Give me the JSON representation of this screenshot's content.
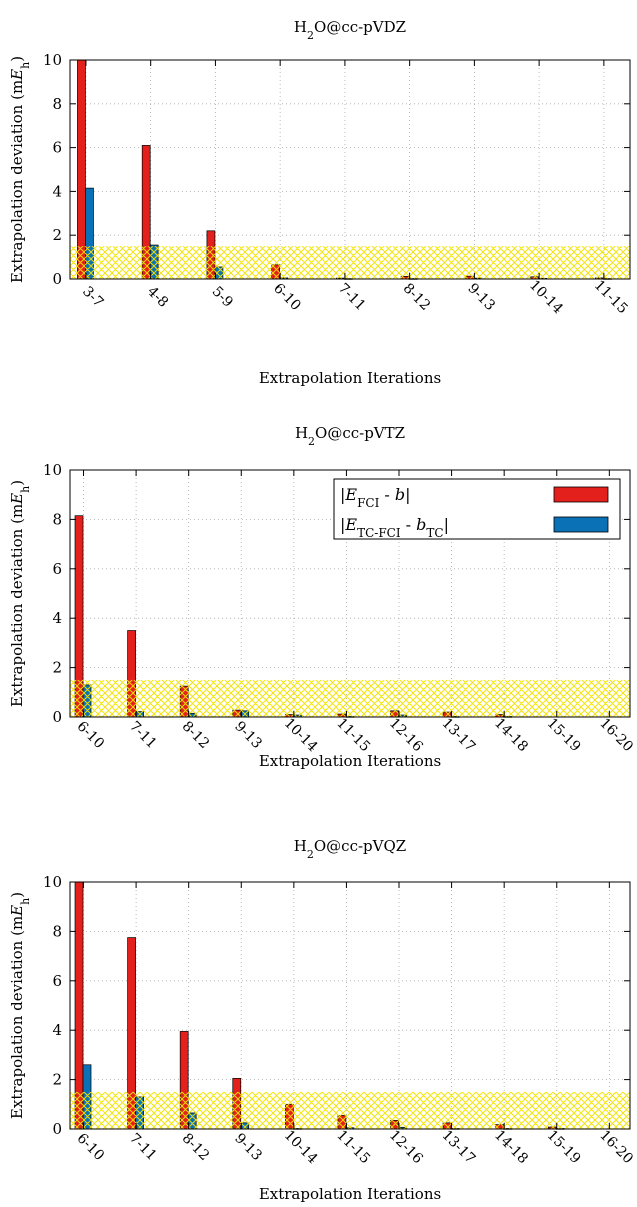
{
  "colors": {
    "fci": "#e3201b",
    "tc_fci": "#0b71b6",
    "chemical_accuracy_band": "#f2e200",
    "grid": "#aaaaaa",
    "axis": "#000000"
  },
  "legend_entries": [
    {
      "series": "fci",
      "prefix": "|E",
      "sub": "FCI",
      "mid": " - ",
      "var": "b",
      "varsub": "",
      "suffix": "|"
    },
    {
      "series": "tc_fci",
      "prefix": "|E",
      "sub": "TC-FCI",
      "mid": " - ",
      "var": "b",
      "varsub": "TC",
      "suffix": "|"
    }
  ],
  "chart_data": [
    {
      "type": "bar",
      "title": {
        "main": "H",
        "sub": "2",
        "rest": "O@cc-pVDZ"
      },
      "xlabel": "Extrapolation Iterations",
      "ylabel": {
        "main": "Extrapolation deviation (m",
        "var": "E",
        "sub": "h",
        "rest": ")"
      },
      "ylim": [
        0,
        10
      ],
      "yticks": [
        "0",
        "2",
        "4",
        "6",
        "8",
        "10"
      ],
      "grid": true,
      "legend": "none",
      "highlight_band": [
        0,
        1.5
      ],
      "categories": [
        "3-7",
        "4-8",
        "5-9",
        "6-10",
        "7-11",
        "8-12",
        "9-13",
        "10-14",
        "11-15"
      ],
      "series": [
        {
          "key": "fci",
          "values": [
            10.0,
            6.1,
            2.2,
            0.65,
            0.04,
            0.12,
            0.13,
            0.1,
            0.05
          ]
        },
        {
          "key": "tc_fci",
          "values": [
            4.15,
            1.55,
            0.55,
            0.05,
            0.02,
            0.02,
            0.04,
            0.03,
            0.02
          ]
        }
      ]
    },
    {
      "type": "bar",
      "title": {
        "main": "H",
        "sub": "2",
        "rest": "O@cc-pVTZ"
      },
      "xlabel": "Extrapolation Iterations",
      "ylabel": {
        "main": "Extrapolation deviation (m",
        "var": "E",
        "sub": "h",
        "rest": ")"
      },
      "ylim": [
        0,
        10
      ],
      "yticks": [
        "0",
        "2",
        "4",
        "6",
        "8",
        "10"
      ],
      "grid": true,
      "legend": "top-right",
      "highlight_band": [
        0,
        1.5
      ],
      "categories": [
        "6-10",
        "7-11",
        "8-12",
        "9-13",
        "10-14",
        "11-15",
        "12-16",
        "13-17",
        "14-18",
        "15-19",
        "16-20"
      ],
      "series": [
        {
          "key": "fci",
          "values": [
            8.15,
            3.5,
            1.25,
            0.28,
            0.1,
            0.12,
            0.25,
            0.2,
            0.1,
            0.0,
            0.0
          ]
        },
        {
          "key": "tc_fci",
          "values": [
            1.3,
            0.22,
            0.15,
            0.25,
            0.08,
            0.02,
            0.08,
            0.02,
            0.02,
            0.0,
            0.0
          ]
        }
      ]
    },
    {
      "type": "bar",
      "title": {
        "main": "H",
        "sub": "2",
        "rest": "O@cc-pVQZ"
      },
      "xlabel": "Extrapolation Iterations",
      "ylabel": {
        "main": "Extrapolation deviation (m",
        "var": "E",
        "sub": "h",
        "rest": ")"
      },
      "ylim": [
        0,
        10
      ],
      "yticks": [
        "0",
        "2",
        "4",
        "6",
        "8",
        "10"
      ],
      "grid": true,
      "legend": "none",
      "highlight_band": [
        0,
        1.5
      ],
      "categories": [
        "6-10",
        "7-11",
        "8-12",
        "9-13",
        "10-14",
        "11-15",
        "12-16",
        "13-17",
        "14-18",
        "15-19",
        "16-20"
      ],
      "series": [
        {
          "key": "fci",
          "values": [
            10.0,
            7.75,
            3.95,
            2.05,
            1.0,
            0.55,
            0.35,
            0.25,
            0.18,
            0.08,
            0.0
          ]
        },
        {
          "key": "tc_fci",
          "values": [
            2.6,
            1.3,
            0.65,
            0.25,
            0.02,
            0.05,
            0.07,
            0.02,
            0.02,
            0.02,
            0.0
          ]
        }
      ]
    }
  ]
}
